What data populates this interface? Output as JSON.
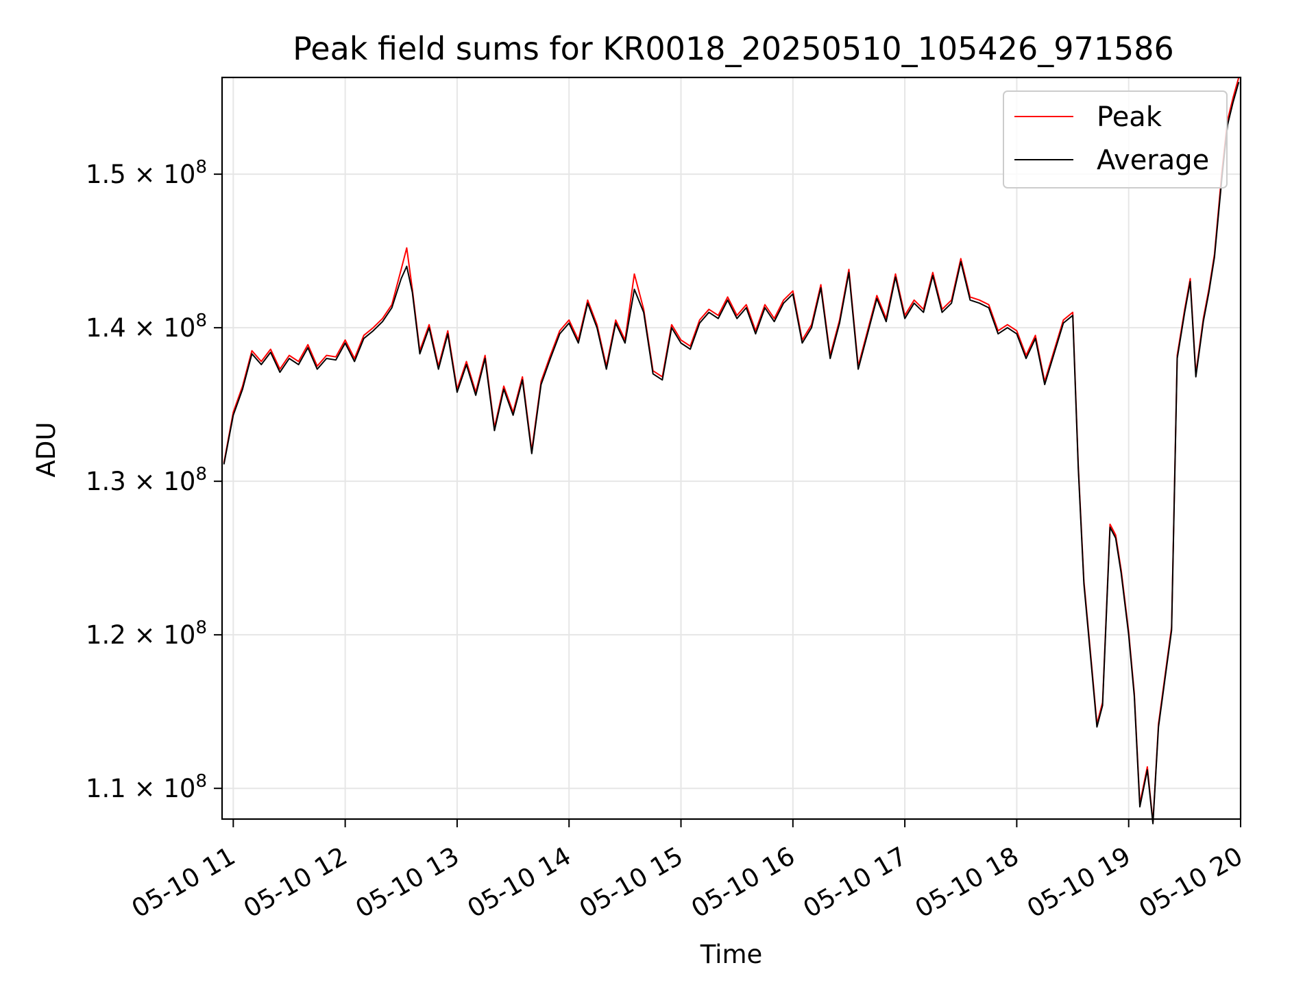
{
  "chart_data": {
    "type": "line",
    "title": "Peak field sums for KR0018_20250510_105426_971586",
    "xlabel": "Time",
    "ylabel": "ADU",
    "xlim": [
      "05-10 10:54",
      "05-10 20:00"
    ],
    "ylim": [
      108000000,
      156300000
    ],
    "x_ticks": [
      "05-10 11",
      "05-10 12",
      "05-10 13",
      "05-10 14",
      "05-10 15",
      "05-10 16",
      "05-10 17",
      "05-10 18",
      "05-10 19",
      "05-10 20"
    ],
    "y_ticks": [
      {
        "value": 110000000,
        "mantissa": "1.1",
        "exp": "8"
      },
      {
        "value": 120000000,
        "mantissa": "1.2",
        "exp": "8"
      },
      {
        "value": 130000000,
        "mantissa": "1.3",
        "exp": "8"
      },
      {
        "value": 140000000,
        "mantissa": "1.4",
        "exp": "8"
      },
      {
        "value": 150000000,
        "mantissa": "1.5",
        "exp": "8"
      }
    ],
    "grid": true,
    "legend_position": "top-right",
    "series": [
      {
        "name": "Peak",
        "color": "#ff0000",
        "x": [
          "05-10 10:55",
          "05-10 11:00",
          "05-10 11:05",
          "05-10 11:10",
          "05-10 11:15",
          "05-10 11:20",
          "05-10 11:25",
          "05-10 11:30",
          "05-10 11:35",
          "05-10 11:40",
          "05-10 11:45",
          "05-10 11:50",
          "05-10 11:55",
          "05-10 12:00",
          "05-10 12:05",
          "05-10 12:10",
          "05-10 12:15",
          "05-10 12:20",
          "05-10 12:25",
          "05-10 12:30",
          "05-10 12:33",
          "05-10 12:36",
          "05-10 12:40",
          "05-10 12:45",
          "05-10 12:50",
          "05-10 12:55",
          "05-10 13:00",
          "05-10 13:05",
          "05-10 13:10",
          "05-10 13:15",
          "05-10 13:20",
          "05-10 13:25",
          "05-10 13:30",
          "05-10 13:35",
          "05-10 13:40",
          "05-10 13:45",
          "05-10 13:50",
          "05-10 13:55",
          "05-10 14:00",
          "05-10 14:05",
          "05-10 14:10",
          "05-10 14:15",
          "05-10 14:20",
          "05-10 14:25",
          "05-10 14:30",
          "05-10 14:35",
          "05-10 14:40",
          "05-10 14:45",
          "05-10 14:50",
          "05-10 14:55",
          "05-10 15:00",
          "05-10 15:05",
          "05-10 15:10",
          "05-10 15:15",
          "05-10 15:20",
          "05-10 15:25",
          "05-10 15:30",
          "05-10 15:35",
          "05-10 15:40",
          "05-10 15:45",
          "05-10 15:50",
          "05-10 15:55",
          "05-10 16:00",
          "05-10 16:05",
          "05-10 16:10",
          "05-10 16:15",
          "05-10 16:20",
          "05-10 16:25",
          "05-10 16:30",
          "05-10 16:35",
          "05-10 16:40",
          "05-10 16:45",
          "05-10 16:50",
          "05-10 16:55",
          "05-10 17:00",
          "05-10 17:05",
          "05-10 17:10",
          "05-10 17:15",
          "05-10 17:20",
          "05-10 17:25",
          "05-10 17:30",
          "05-10 17:35",
          "05-10 17:40",
          "05-10 17:45",
          "05-10 17:50",
          "05-10 17:55",
          "05-10 18:00",
          "05-10 18:05",
          "05-10 18:10",
          "05-10 18:15",
          "05-10 18:20",
          "05-10 18:25",
          "05-10 18:30",
          "05-10 18:33",
          "05-10 18:36",
          "05-10 18:40",
          "05-10 18:43",
          "05-10 18:46",
          "05-10 18:50",
          "05-10 18:53",
          "05-10 18:56",
          "05-10 19:00",
          "05-10 19:03",
          "05-10 19:06",
          "05-10 19:10",
          "05-10 19:13",
          "05-10 19:16",
          "05-10 19:20",
          "05-10 19:23",
          "05-10 19:26",
          "05-10 19:30",
          "05-10 19:33",
          "05-10 19:36",
          "05-10 19:40",
          "05-10 19:43",
          "05-10 19:46",
          "05-10 19:50",
          "05-10 19:53",
          "05-10 19:56",
          "05-10 19:59"
        ],
        "y": [
          131200000,
          134500000,
          136200000,
          138500000,
          137800000,
          138600000,
          137300000,
          138200000,
          137800000,
          138900000,
          137500000,
          138200000,
          138100000,
          139200000,
          138000000,
          139500000,
          140000000,
          140600000,
          141500000,
          143800000,
          145200000,
          142500000,
          138500000,
          140200000,
          137500000,
          139800000,
          136000000,
          137800000,
          135800000,
          138200000,
          133500000,
          136200000,
          134500000,
          136800000,
          132000000,
          136500000,
          138200000,
          139800000,
          140500000,
          139200000,
          141800000,
          140200000,
          137500000,
          140500000,
          139200000,
          143500000,
          141200000,
          137200000,
          136800000,
          140200000,
          139200000,
          138800000,
          140500000,
          141200000,
          140800000,
          142000000,
          140800000,
          141500000,
          139800000,
          141500000,
          140600000,
          141800000,
          142400000,
          139200000,
          140200000,
          142800000,
          138200000,
          140500000,
          143800000,
          137500000,
          139800000,
          142100000,
          140600000,
          143500000,
          140800000,
          141800000,
          141200000,
          143600000,
          141200000,
          141800000,
          144500000,
          142000000,
          141800000,
          141500000,
          139800000,
          140200000,
          139800000,
          138200000,
          139500000,
          136500000,
          138500000,
          140500000,
          141000000,
          131000000,
          123500000,
          118200000,
          114200000,
          115600000,
          127200000,
          126500000,
          124200000,
          120200000,
          116200000,
          109000000,
          111400000,
          107800000,
          114200000,
          117800000,
          120500000,
          138200000,
          141200000,
          143200000,
          137000000,
          140600000,
          142500000,
          144800000,
          150200000,
          153500000,
          155000000,
          156300000
        ]
      },
      {
        "name": "Average",
        "color": "#000000",
        "x": [
          "05-10 10:55",
          "05-10 11:00",
          "05-10 11:05",
          "05-10 11:10",
          "05-10 11:15",
          "05-10 11:20",
          "05-10 11:25",
          "05-10 11:30",
          "05-10 11:35",
          "05-10 11:40",
          "05-10 11:45",
          "05-10 11:50",
          "05-10 11:55",
          "05-10 12:00",
          "05-10 12:05",
          "05-10 12:10",
          "05-10 12:15",
          "05-10 12:20",
          "05-10 12:25",
          "05-10 12:30",
          "05-10 12:33",
          "05-10 12:36",
          "05-10 12:40",
          "05-10 12:45",
          "05-10 12:50",
          "05-10 12:55",
          "05-10 13:00",
          "05-10 13:05",
          "05-10 13:10",
          "05-10 13:15",
          "05-10 13:20",
          "05-10 13:25",
          "05-10 13:30",
          "05-10 13:35",
          "05-10 13:40",
          "05-10 13:45",
          "05-10 13:50",
          "05-10 13:55",
          "05-10 14:00",
          "05-10 14:05",
          "05-10 14:10",
          "05-10 14:15",
          "05-10 14:20",
          "05-10 14:25",
          "05-10 14:30",
          "05-10 14:35",
          "05-10 14:40",
          "05-10 14:45",
          "05-10 14:50",
          "05-10 14:55",
          "05-10 15:00",
          "05-10 15:05",
          "05-10 15:10",
          "05-10 15:15",
          "05-10 15:20",
          "05-10 15:25",
          "05-10 15:30",
          "05-10 15:35",
          "05-10 15:40",
          "05-10 15:45",
          "05-10 15:50",
          "05-10 15:55",
          "05-10 16:00",
          "05-10 16:05",
          "05-10 16:10",
          "05-10 16:15",
          "05-10 16:20",
          "05-10 16:25",
          "05-10 16:30",
          "05-10 16:35",
          "05-10 16:40",
          "05-10 16:45",
          "05-10 16:50",
          "05-10 16:55",
          "05-10 17:00",
          "05-10 17:05",
          "05-10 17:10",
          "05-10 17:15",
          "05-10 17:20",
          "05-10 17:25",
          "05-10 17:30",
          "05-10 17:35",
          "05-10 17:40",
          "05-10 17:45",
          "05-10 17:50",
          "05-10 17:55",
          "05-10 18:00",
          "05-10 18:05",
          "05-10 18:10",
          "05-10 18:15",
          "05-10 18:20",
          "05-10 18:25",
          "05-10 18:30",
          "05-10 18:33",
          "05-10 18:36",
          "05-10 18:40",
          "05-10 18:43",
          "05-10 18:46",
          "05-10 18:50",
          "05-10 18:53",
          "05-10 18:56",
          "05-10 19:00",
          "05-10 19:03",
          "05-10 19:06",
          "05-10 19:10",
          "05-10 19:13",
          "05-10 19:16",
          "05-10 19:20",
          "05-10 19:23",
          "05-10 19:26",
          "05-10 19:30",
          "05-10 19:33",
          "05-10 19:36",
          "05-10 19:40",
          "05-10 19:43",
          "05-10 19:46",
          "05-10 19:50",
          "05-10 19:53",
          "05-10 19:56",
          "05-10 19:59"
        ],
        "y": [
          131100000,
          134300000,
          136000000,
          138300000,
          137600000,
          138400000,
          137100000,
          138000000,
          137600000,
          138700000,
          137300000,
          138000000,
          137900000,
          139000000,
          137800000,
          139300000,
          139800000,
          140400000,
          141300000,
          143200000,
          144000000,
          142300000,
          138300000,
          140000000,
          137300000,
          139600000,
          135800000,
          137600000,
          135600000,
          138000000,
          133300000,
          136000000,
          134300000,
          136600000,
          131800000,
          136300000,
          138000000,
          139600000,
          140300000,
          139000000,
          141600000,
          140000000,
          137300000,
          140300000,
          139000000,
          142500000,
          141000000,
          137000000,
          136600000,
          140000000,
          139000000,
          138600000,
          140300000,
          141000000,
          140600000,
          141800000,
          140600000,
          141300000,
          139600000,
          141300000,
          140400000,
          141600000,
          142200000,
          139000000,
          140000000,
          142600000,
          138000000,
          140300000,
          143600000,
          137300000,
          139600000,
          141900000,
          140400000,
          143300000,
          140600000,
          141600000,
          141000000,
          143400000,
          141000000,
          141600000,
          144300000,
          141800000,
          141600000,
          141300000,
          139600000,
          140000000,
          139600000,
          138000000,
          139300000,
          136300000,
          138300000,
          140300000,
          140800000,
          130800000,
          123300000,
          118000000,
          114000000,
          115400000,
          127000000,
          126300000,
          124000000,
          120000000,
          116000000,
          108800000,
          111200000,
          107700000,
          114000000,
          117600000,
          120300000,
          138000000,
          141000000,
          143000000,
          136800000,
          140400000,
          142300000,
          144600000,
          149800000,
          153200000,
          154700000,
          156000000
        ]
      }
    ]
  }
}
